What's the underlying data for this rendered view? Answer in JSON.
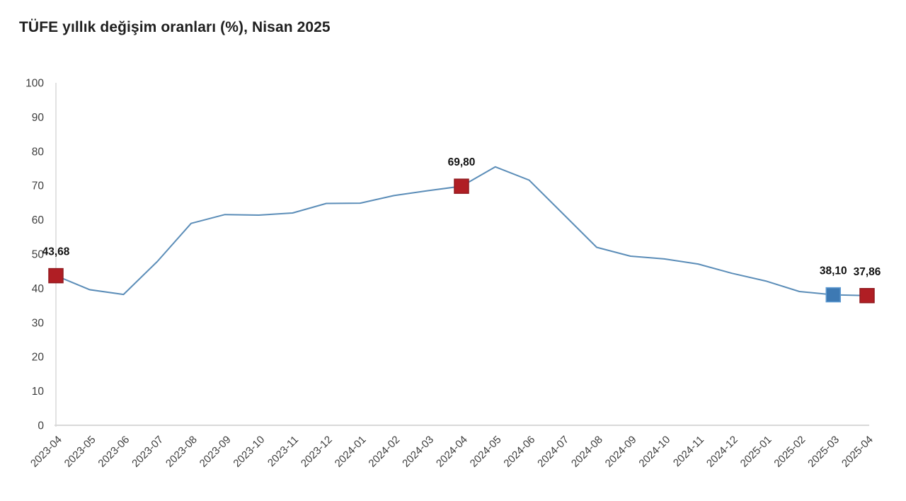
{
  "header": {
    "title": "TÜFE yıllık değişim oranları (%), Nisan 2025"
  },
  "chart_data": {
    "type": "line",
    "title": "TÜFE yıllık değişim oranları (%), Nisan 2025",
    "xlabel": "",
    "ylabel": "",
    "ylim": [
      0,
      100
    ],
    "yticks": [
      0,
      10,
      20,
      30,
      40,
      50,
      60,
      70,
      80,
      90,
      100
    ],
    "grid": false,
    "legend": "none",
    "x": [
      "2023-04",
      "2023-05",
      "2023-06",
      "2023-07",
      "2023-08",
      "2023-09",
      "2023-10",
      "2023-11",
      "2023-12",
      "2024-01",
      "2024-02",
      "2024-03",
      "2024-04",
      "2024-05",
      "2024-06",
      "2024-07",
      "2024-08",
      "2024-09",
      "2024-10",
      "2024-11",
      "2024-12",
      "2025-01",
      "2025-02",
      "2025-03",
      "2025-04"
    ],
    "values": [
      43.68,
      39.59,
      38.21,
      47.83,
      58.94,
      61.53,
      61.36,
      61.98,
      64.77,
      64.86,
      67.07,
      68.5,
      69.8,
      75.45,
      71.6,
      61.78,
      51.97,
      49.38,
      48.58,
      47.09,
      44.38,
      42.12,
      39.05,
      38.1,
      37.86
    ],
    "annotations": [
      {
        "x": "2023-04",
        "value": 43.68,
        "label": "43,68",
        "marker": "square",
        "marker_color": "#b01e24",
        "marker_border": "#911a1f"
      },
      {
        "x": "2024-04",
        "value": 69.8,
        "label": "69,80",
        "marker": "square",
        "marker_color": "#b01e24",
        "marker_border": "#911a1f"
      },
      {
        "x": "2025-03",
        "value": 38.1,
        "label": "38,10",
        "marker": "square",
        "marker_color": "#3d79b3",
        "marker_border": "#5e9ad2"
      },
      {
        "x": "2025-04",
        "value": 37.86,
        "label": "37,86",
        "marker": "square",
        "marker_color": "#b01e24",
        "marker_border": "#911a1f"
      }
    ],
    "colors": {
      "line": "#5b8db8",
      "axis": "#d9d9d9",
      "tick_text": "#3d3d3d",
      "label_text": "#111111",
      "title_text": "#1f1f1f",
      "background": "#ffffff"
    }
  }
}
